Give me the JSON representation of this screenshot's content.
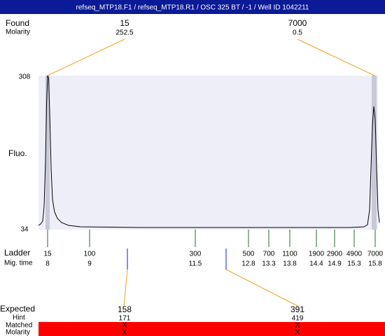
{
  "header": {
    "title": "refseq_MTP18.F1 / refseq_MTP18.R1 / OSC 325 BT / -1 / Well ID 1042211"
  },
  "found": {
    "label": "Found",
    "molarity_label": "Molarity",
    "peaks": [
      {
        "size": "15",
        "molarity": "252.5"
      },
      {
        "size": "7000",
        "molarity": "0.5"
      }
    ]
  },
  "axis": {
    "label": "Fluo.",
    "max": "308",
    "min": "34"
  },
  "ladder": {
    "label": "Ladder",
    "time_label": "Mig. time",
    "bands": [
      {
        "size": "15",
        "time": "8"
      },
      {
        "size": "100",
        "time": "9"
      },
      {
        "size": "300",
        "time": "11.5"
      },
      {
        "size": "500",
        "time": "12.8"
      },
      {
        "size": "700",
        "time": "13.3"
      },
      {
        "size": "1100",
        "time": "13.8"
      },
      {
        "size": "1900",
        "time": "14.4"
      },
      {
        "size": "2900",
        "time": "14.9"
      },
      {
        "size": "4900",
        "time": "15.3"
      },
      {
        "size": "7000",
        "time": "15.8"
      }
    ]
  },
  "expected": {
    "label": "Expected",
    "hint_label": "Hint",
    "matched_label": "Matched",
    "molarity_label": "Molarity",
    "peaks": [
      {
        "size": "158",
        "hint": "171",
        "matched": "X",
        "molarity": "X"
      },
      {
        "size": "391",
        "hint": "419",
        "matched": "X",
        "molarity": "X"
      }
    ]
  }
}
